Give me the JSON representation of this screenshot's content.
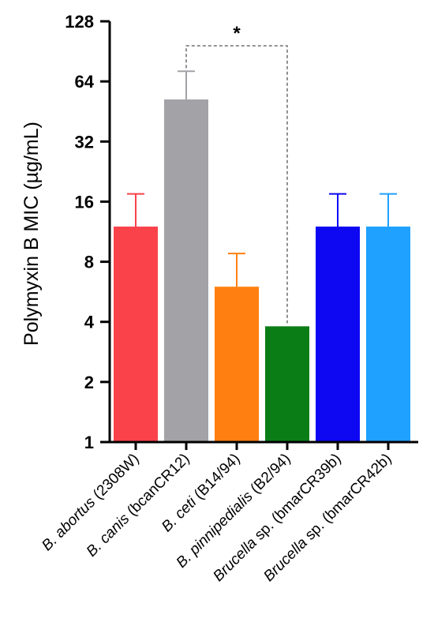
{
  "chart_data": {
    "type": "bar",
    "ylabel": "Polymyxin B MIC (µg/mL)",
    "xlabel": "",
    "y_scale": "log2",
    "ylim": [
      1,
      128
    ],
    "y_ticks": [
      1,
      2,
      4,
      8,
      16,
      32,
      64,
      128
    ],
    "y_tick_labels": [
      "1",
      "2",
      "4",
      "8",
      "16",
      "32",
      "64",
      "128"
    ],
    "categories": [
      {
        "italic": "B. abortus",
        "rest": " (2308W)"
      },
      {
        "italic": "B. canis",
        "rest": " (bcanCR12)"
      },
      {
        "italic": "B. ceti",
        "rest": " (B14/94)"
      },
      {
        "italic": "B. pinnipedialis",
        "rest": " (B2/94)"
      },
      {
        "italic": "Brucella",
        "rest": " sp. (bmarCR39b)"
      },
      {
        "italic": "Brucella",
        "rest": " sp. (bmarCR42b)"
      }
    ],
    "values": [
      12,
      52,
      6,
      3.8,
      12,
      12
    ],
    "error_upper": [
      17.5,
      72,
      8.8,
      null,
      17.5,
      17.5
    ],
    "colors": [
      "#f9424a",
      "#a3a3a7",
      "#ff8010",
      "#0b7d17",
      "#0e07f2",
      "#1fa1ff"
    ],
    "annotation": {
      "text": "*",
      "between": [
        1,
        3
      ]
    }
  }
}
